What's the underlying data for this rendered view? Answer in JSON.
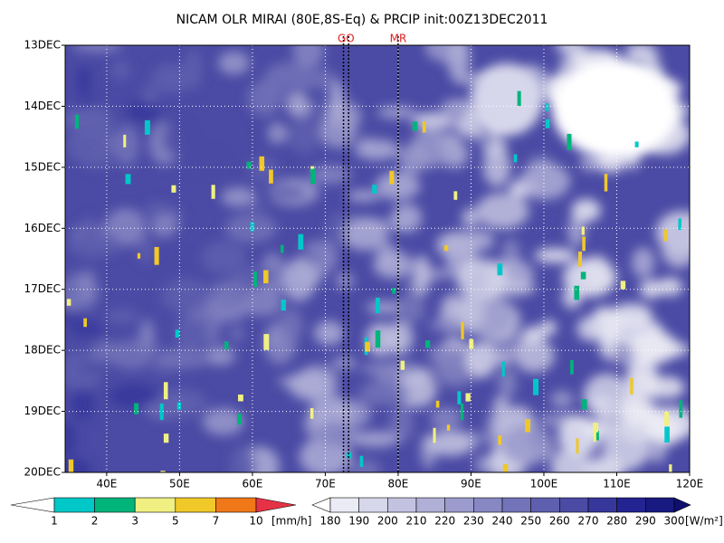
{
  "chart_data": {
    "type": "heatmap",
    "title": "NICAM OLR MIRAI (80E,8S-Eq) & PRCIP init:00Z13DEC2011",
    "xlim": [
      34.3,
      120
    ],
    "xticks": [
      {
        "value": 40,
        "label": "40E"
      },
      {
        "value": 50,
        "label": "50E"
      },
      {
        "value": 60,
        "label": "60E"
      },
      {
        "value": 70,
        "label": "70E"
      },
      {
        "value": 80,
        "label": "80E"
      },
      {
        "value": 90,
        "label": "90E"
      },
      {
        "value": 100,
        "label": "100E"
      },
      {
        "value": 110,
        "label": "110E"
      },
      {
        "value": 120,
        "label": "120E"
      }
    ],
    "ylim": [
      0,
      7
    ],
    "yticks": [
      {
        "value": 0,
        "label": "13DEC"
      },
      {
        "value": 1,
        "label": "14DEC"
      },
      {
        "value": 2,
        "label": "15DEC"
      },
      {
        "value": 3,
        "label": "16DEC"
      },
      {
        "value": 4,
        "label": "17DEC"
      },
      {
        "value": 5,
        "label": "18DEC"
      },
      {
        "value": 6,
        "label": "19DEC"
      },
      {
        "value": 7,
        "label": "20DEC"
      }
    ],
    "grid": true,
    "markers": [
      {
        "label": "GO",
        "x": [
          72.5,
          73.2
        ]
      },
      {
        "label": "MR",
        "x": [
          80
        ]
      }
    ],
    "colorbars": [
      {
        "levels": [
          1,
          2,
          3,
          5,
          7,
          10
        ],
        "unit": "[mm/h]",
        "colors": [
          "#ffffff",
          "#00c8c8",
          "#00b47a",
          "#f0f082",
          "#f0c828",
          "#f07818",
          "#e63246"
        ]
      },
      {
        "levels": [
          180,
          190,
          200,
          210,
          220,
          230,
          240,
          250,
          260,
          270,
          280,
          290,
          300
        ],
        "unit": "[W/m²]",
        "colors": [
          "#ffffff",
          "#ebebf5",
          "#d7d7eb",
          "#c3c3e1",
          "#afafd7",
          "#9b9bcd",
          "#8787c3",
          "#7373b9",
          "#5f5faf",
          "#4b4ba5",
          "#37379b",
          "#232391",
          "#191982",
          "#0f0f6e"
        ]
      }
    ]
  }
}
